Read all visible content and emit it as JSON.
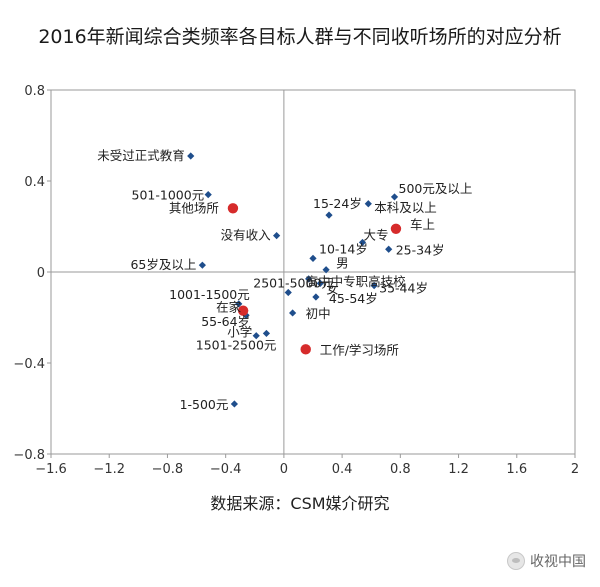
{
  "header": {
    "title": "2016年新闻综合类频率各目标人群与不同收听场所的对应分析"
  },
  "footer": {
    "source": "数据来源：CSM媒介研究"
  },
  "watermark": {
    "text": "收视中国",
    "icon": "wechat-icon"
  },
  "colors": {
    "point": "#1f4e8c",
    "location_point": "#d62b2b",
    "frame": "#999999",
    "axis": "#9a9a9a",
    "text": "#222222"
  },
  "chart_data": {
    "type": "scatter",
    "title": "2016年新闻综合类频率各目标人群与不同收听场所的对应分析",
    "xlim": [
      -1.6,
      2
    ],
    "ylim": [
      -0.8,
      0.8
    ],
    "xticks": [
      -1.6,
      -1.2,
      -0.8,
      -0.4,
      0,
      0.4,
      0.8,
      1.2,
      1.6,
      2
    ],
    "yticks": [
      -0.8,
      -0.4,
      0,
      0.4,
      0.8
    ],
    "xtick_labels": [
      "−1.6",
      "−1.2",
      "−0.8",
      "−0.4",
      "0",
      "0.4",
      "0.8",
      "1.2",
      "1.6",
      "2"
    ],
    "ytick_labels": [
      "−0.8",
      "−0.4",
      "0",
      "0.4",
      "0.8"
    ],
    "grid": false,
    "series": [
      {
        "kind": "group",
        "points": [
          {
            "label": "未受过正式教育",
            "x": -0.64,
            "y": 0.51
          },
          {
            "label": "501-1000元",
            "x": -0.52,
            "y": 0.34
          },
          {
            "label": "没有收入",
            "x": -0.05,
            "y": 0.16
          },
          {
            "label": "65岁及以上",
            "x": -0.56,
            "y": 0.03
          },
          {
            "label": "500元及以上",
            "x": 0.76,
            "y": 0.33
          },
          {
            "label": "本科及以上",
            "x": 0.58,
            "y": 0.3
          },
          {
            "label": "15-24岁",
            "x": 0.31,
            "y": 0.25
          },
          {
            "label": "大专",
            "x": 0.54,
            "y": 0.13
          },
          {
            "label": "25-34岁",
            "x": 0.72,
            "y": 0.1
          },
          {
            "label": "10-14岁",
            "x": 0.2,
            "y": 0.06
          },
          {
            "label": "男",
            "x": 0.29,
            "y": 0.01
          },
          {
            "label": "高中中专职高技校",
            "x": 0.17,
            "y": -0.03
          },
          {
            "label": "2501-5000元",
            "x": 0.03,
            "y": -0.09
          },
          {
            "label": "女",
            "x": 0.25,
            "y": -0.05
          },
          {
            "label": "35-44岁",
            "x": 0.62,
            "y": -0.06
          },
          {
            "label": "45-54岁",
            "x": 0.22,
            "y": -0.11
          },
          {
            "label": "初中",
            "x": 0.06,
            "y": -0.18
          },
          {
            "label": "1001-1500元",
            "x": -0.31,
            "y": -0.14
          },
          {
            "label": "55-64岁",
            "x": -0.26,
            "y": -0.19
          },
          {
            "label": "小学",
            "x": -0.19,
            "y": -0.28
          },
          {
            "label": "1501-2500元",
            "x": -0.12,
            "y": -0.27
          },
          {
            "label": "1-500元",
            "x": -0.34,
            "y": -0.58
          }
        ]
      },
      {
        "kind": "location",
        "points": [
          {
            "label": "其他场所",
            "x": -0.35,
            "y": 0.28
          },
          {
            "label": "车上",
            "x": 0.77,
            "y": 0.19
          },
          {
            "label": "在家",
            "x": -0.28,
            "y": -0.17
          },
          {
            "label": "工作/学习场所",
            "x": 0.15,
            "y": -0.34
          }
        ]
      }
    ]
  }
}
